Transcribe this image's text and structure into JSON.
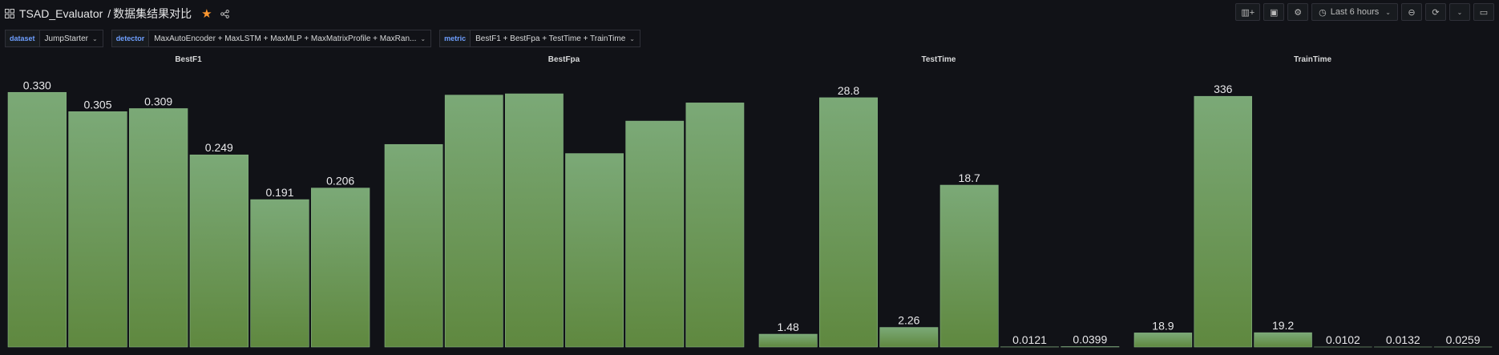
{
  "header": {
    "breadcrumb_root": "TSAD_Evaluator",
    "breadcrumb_sep": "/",
    "breadcrumb_page": "数据集结果对比",
    "time_range": "Last 6 hours"
  },
  "variables": [
    {
      "label": "dataset",
      "value": "JumpStarter"
    },
    {
      "label": "detector",
      "value": "MaxAutoEncoder + MaxLSTM + MaxMLP + MaxMatrixProfile + MaxRan..."
    },
    {
      "label": "metric",
      "value": "BestF1 + BestFpa + TestTime + TrainTime"
    }
  ],
  "colors": {
    "bar_top": "#7ba977",
    "bar_bottom": "#5f883f",
    "background": "#111217"
  },
  "chart_data": [
    {
      "type": "bar",
      "title": "BestF1",
      "values": [
        0.33,
        0.305,
        0.309,
        0.249,
        0.191,
        0.206
      ],
      "labels": [
        "0.330",
        "0.305",
        "0.309",
        "0.249",
        "0.191",
        "0.206"
      ],
      "ylim": [
        0,
        0.35
      ]
    },
    {
      "type": "bar",
      "title": "BestFpa",
      "values": [
        0.78,
        0.97,
        0.975,
        0.745,
        0.87,
        0.94
      ],
      "labels": [
        "",
        "",
        "",
        "",
        "",
        ""
      ],
      "ylim": [
        0,
        1.04
      ]
    },
    {
      "type": "bar",
      "title": "TestTime",
      "values": [
        1.48,
        28.8,
        2.26,
        18.7,
        0.0121,
        0.0399
      ],
      "labels": [
        "1.48",
        "28.8",
        "2.26",
        "18.7",
        "0.0121",
        "0.0399"
      ],
      "ylim": [
        0,
        31.2
      ]
    },
    {
      "type": "bar",
      "title": "TrainTime",
      "values": [
        18.9,
        336,
        19.2,
        0.0102,
        0.0132,
        0.0259
      ],
      "labels": [
        "18.9",
        "336",
        "19.2",
        "0.0102",
        "0.0132",
        "0.0259"
      ],
      "ylim": [
        0,
        362
      ]
    }
  ]
}
